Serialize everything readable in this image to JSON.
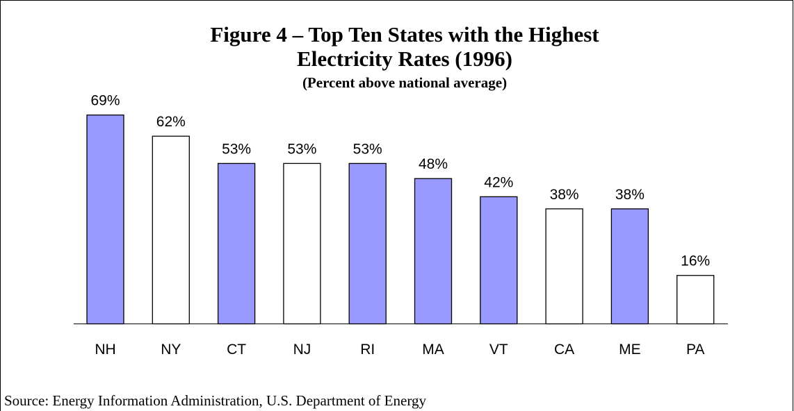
{
  "chart_data": {
    "type": "bar",
    "title": [
      "Figure 4 – Top Ten States with the Highest",
      "Electricity Rates (1996)"
    ],
    "subtitle": "(Percent above national average)",
    "categories": [
      "NH",
      "NY",
      "CT",
      "NJ",
      "RI",
      "MA",
      "VT",
      "CA",
      "ME",
      "PA"
    ],
    "values": [
      69,
      62,
      53,
      53,
      53,
      48,
      42,
      38,
      38,
      16
    ],
    "value_labels": [
      "69%",
      "62%",
      "53%",
      "53%",
      "53%",
      "48%",
      "42%",
      "38%",
      "38%",
      "16%"
    ],
    "colors": [
      "#9999ff",
      "#ffffff",
      "#9999ff",
      "#ffffff",
      "#9999ff",
      "#9999ff",
      "#9999ff",
      "#ffffff",
      "#9999ff",
      "#ffffff"
    ],
    "source": "Source: Energy Information Administration, U.S. Department of Energy"
  }
}
